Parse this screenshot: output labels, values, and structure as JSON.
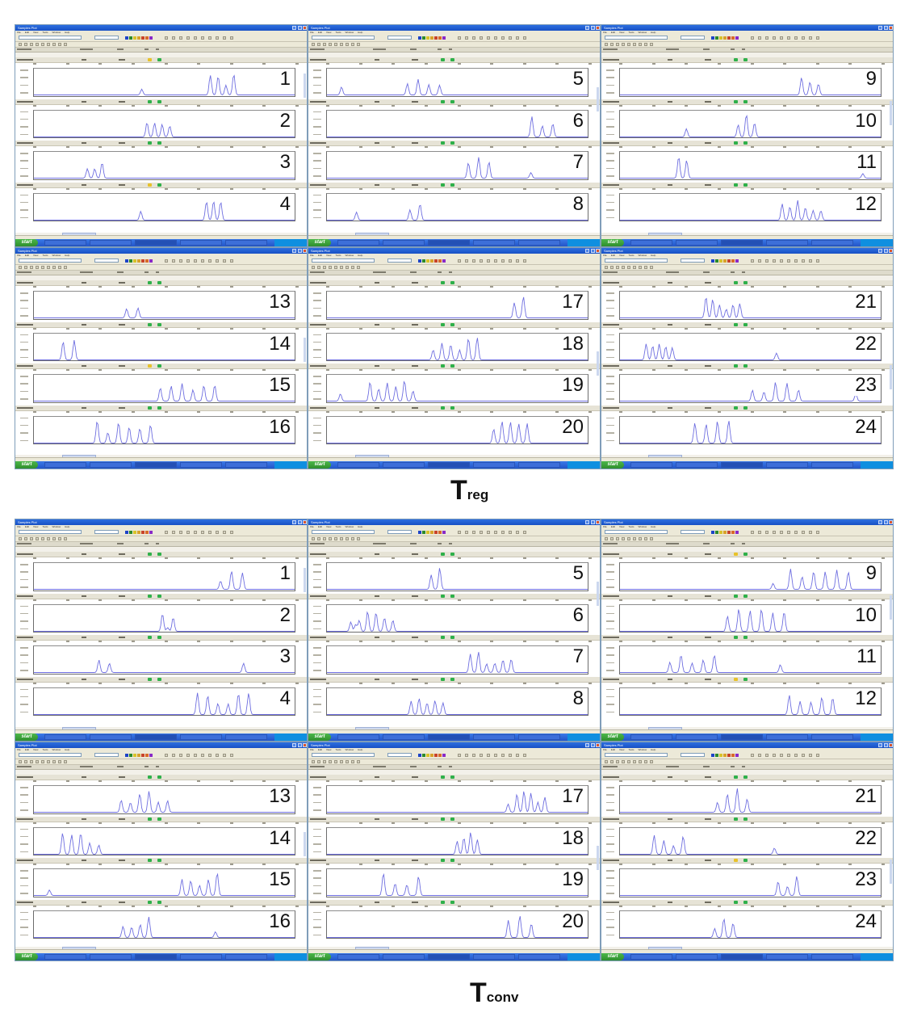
{
  "figure": {
    "groups": [
      {
        "caption": {
          "main": "T",
          "sub": "reg"
        },
        "screens": [
          {
            "panels": [
              "1",
              "2",
              "3",
              "4"
            ]
          },
          {
            "panels": [
              "5",
              "6",
              "7",
              "8"
            ]
          },
          {
            "panels": [
              "9",
              "10",
              "11",
              "12"
            ]
          },
          {
            "panels": [
              "13",
              "14",
              "15",
              "16"
            ]
          },
          {
            "panels": [
              "17",
              "18",
              "19",
              "20"
            ]
          },
          {
            "panels": [
              "21",
              "22",
              "23",
              "24"
            ]
          }
        ]
      },
      {
        "caption": {
          "main": "T",
          "sub": "conv"
        },
        "screens": [
          {
            "panels": [
              "1",
              "2",
              "3",
              "4"
            ]
          },
          {
            "panels": [
              "5",
              "6",
              "7",
              "8"
            ]
          },
          {
            "panels": [
              "9",
              "10",
              "11",
              "12"
            ]
          },
          {
            "panels": [
              "13",
              "14",
              "15",
              "16"
            ]
          },
          {
            "panels": [
              "17",
              "18",
              "19",
              "20"
            ]
          },
          {
            "panels": [
              "21",
              "22",
              "23",
              "24"
            ]
          }
        ]
      }
    ],
    "window": {
      "title": "Samples Plot",
      "menu": [
        "File",
        "Edit",
        "View",
        "Tools",
        "Window",
        "Help"
      ],
      "start_label": "start"
    },
    "colors": {
      "trace": "#6e6ee0",
      "titlebar": "#1f5fd8",
      "taskbar": "#2f65d6",
      "start": "#3ba53a",
      "led_green": "#2fb04a",
      "led_yellow": "#e8c22a"
    }
  }
}
